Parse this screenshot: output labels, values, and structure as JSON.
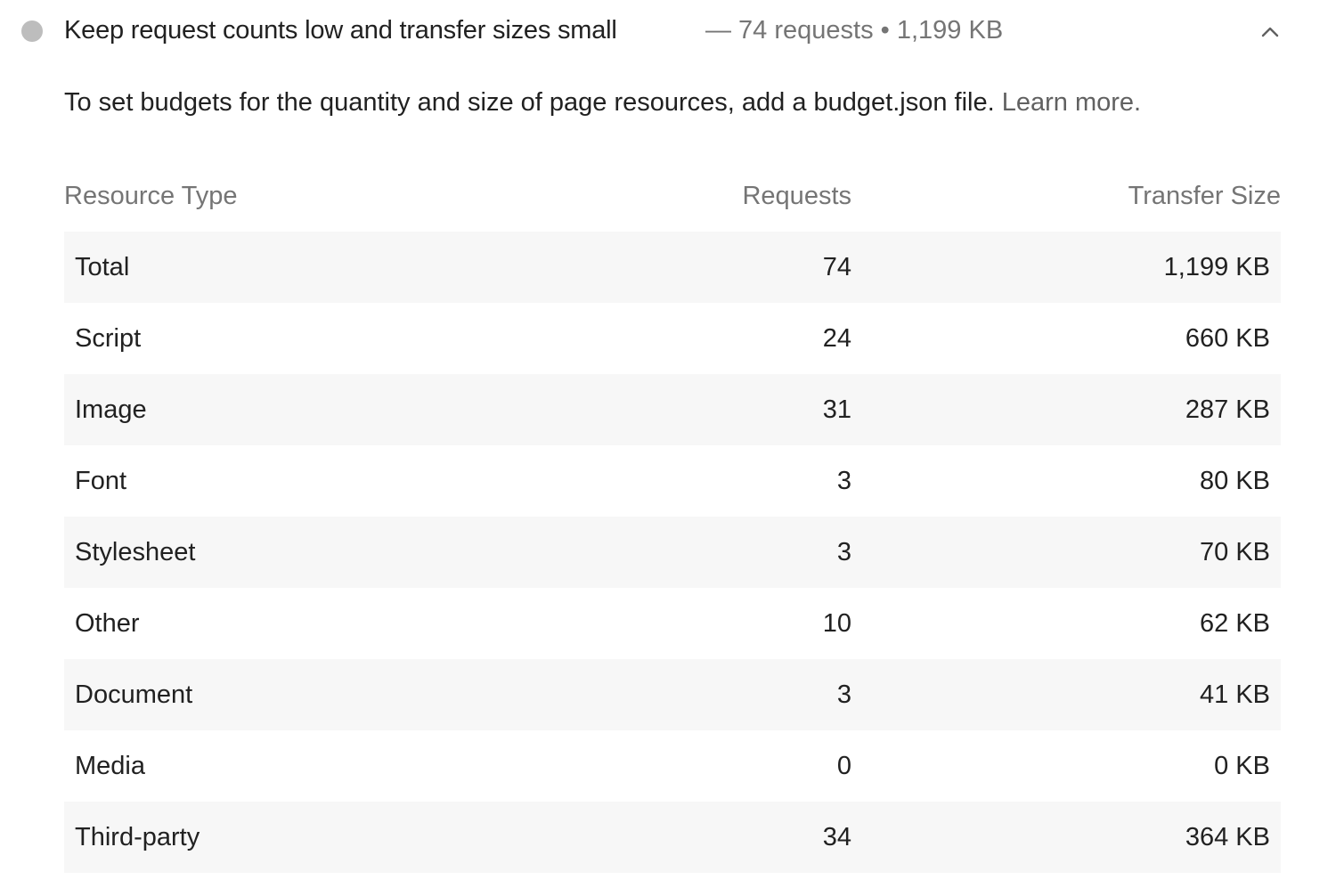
{
  "audit": {
    "title": "Keep request counts low and transfer sizes small",
    "summary": "— 74 requests • 1,199 KB",
    "description": "To set budgets for the quantity and size of page resources, add a budget.json file.",
    "learn_more": "Learn more.",
    "status_color": "#bdbdbd",
    "expand_icon": "chevron-up-icon"
  },
  "table": {
    "headers": {
      "type": "Resource Type",
      "requests": "Requests",
      "size": "Transfer Size"
    },
    "rows": [
      {
        "type": "Total",
        "requests": "74",
        "size": "1,199 KB"
      },
      {
        "type": "Script",
        "requests": "24",
        "size": "660 KB"
      },
      {
        "type": "Image",
        "requests": "31",
        "size": "287 KB"
      },
      {
        "type": "Font",
        "requests": "3",
        "size": "80 KB"
      },
      {
        "type": "Stylesheet",
        "requests": "3",
        "size": "70 KB"
      },
      {
        "type": "Other",
        "requests": "10",
        "size": "62 KB"
      },
      {
        "type": "Document",
        "requests": "3",
        "size": "41 KB"
      },
      {
        "type": "Media",
        "requests": "0",
        "size": "0 KB"
      },
      {
        "type": "Third-party",
        "requests": "34",
        "size": "364 KB"
      }
    ]
  }
}
